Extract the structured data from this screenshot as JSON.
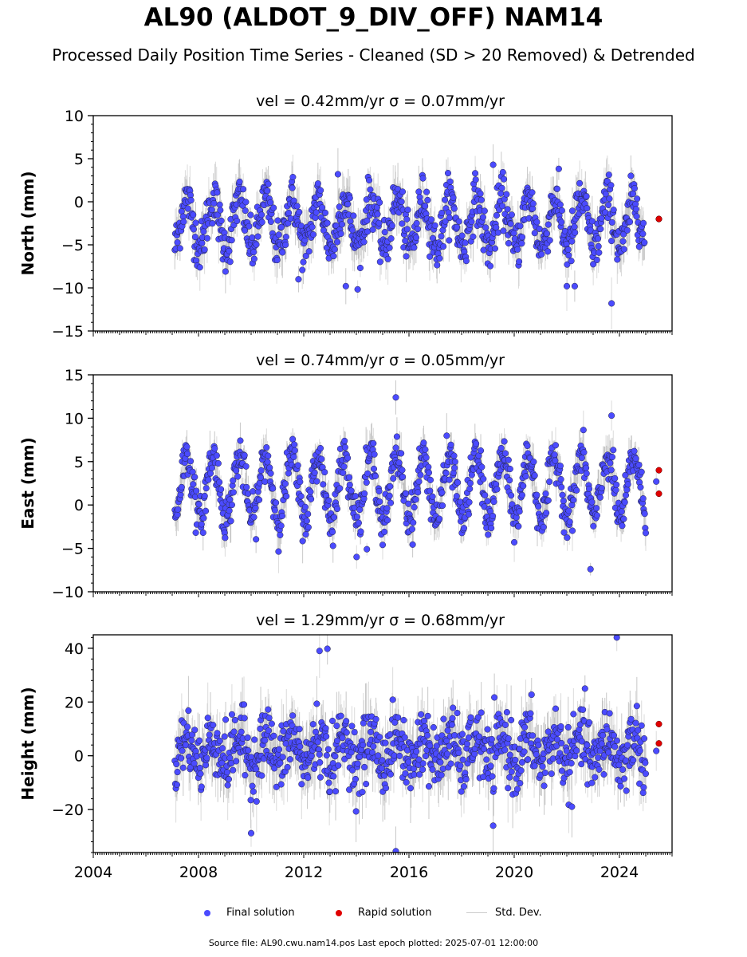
{
  "title": "AL90 (ALDOT_9_DIV_OFF) NAM14",
  "subtitle": "Processed Daily Position Time Series - Cleaned (SD > 20 Removed) & Detrended",
  "legend": {
    "final": "Final solution",
    "rapid": "Rapid solution",
    "std": "Std. Dev."
  },
  "footer": "Source file: AL90.cwu.nam14.pos  Last epoch plotted: 2025-07-01 12:00:00",
  "colors": {
    "final": "#4b4bff",
    "rapid": "#e00000",
    "std": "#cccccc"
  },
  "chart_data": [
    {
      "type": "scatter",
      "title": "vel = 0.42mm/yr   σ = 0.07mm/yr",
      "ylabel": "North (mm)",
      "xlim": [
        2004,
        2026
      ],
      "ylim": [
        -15,
        10
      ],
      "yticks": [
        -15,
        -10,
        -5,
        0,
        5,
        10
      ],
      "xticks": [
        2004,
        2008,
        2012,
        2016,
        2020,
        2024
      ],
      "data_start": 2007.1,
      "data_end": 2024.95,
      "final_series": {
        "offset": -2.5,
        "seasonal_amplitude": 2.8,
        "noise_sd": 1.4
      },
      "rapid_points": [
        {
          "x": 2025.5,
          "y": -2.0
        },
        {
          "x": 2025.5,
          "y": -2.0
        }
      ],
      "outliers": [
        {
          "x": 2023.7,
          "y": -11.8
        },
        {
          "x": 2022.3,
          "y": -9.8
        },
        {
          "x": 2022.0,
          "y": -9.8
        },
        {
          "x": 2013.6,
          "y": -9.8
        },
        {
          "x": 2011.8,
          "y": -9.0
        },
        {
          "x": 2013.3,
          "y": 3.2
        },
        {
          "x": 2019.2,
          "y": 4.3
        }
      ]
    },
    {
      "type": "scatter",
      "title": "vel = 0.74mm/yr   σ = 0.05mm/yr",
      "ylabel": "East (mm)",
      "xlim": [
        2004,
        2026
      ],
      "ylim": [
        -10,
        15
      ],
      "yticks": [
        -10,
        -5,
        0,
        5,
        10,
        15
      ],
      "xticks": [
        2004,
        2008,
        2012,
        2016,
        2020,
        2024
      ],
      "data_start": 2007.1,
      "data_end": 2025.0,
      "final_series": {
        "offset": 2.0,
        "seasonal_amplitude": 3.6,
        "noise_sd": 1.2
      },
      "rapid_points": [
        {
          "x": 2025.5,
          "y": 4.0
        },
        {
          "x": 2025.5,
          "y": 1.3
        }
      ],
      "outliers": [
        {
          "x": 2015.5,
          "y": 12.4
        },
        {
          "x": 2022.9,
          "y": -7.4
        },
        {
          "x": 2014.4,
          "y": -5.1
        },
        {
          "x": 2015.0,
          "y": -4.6
        },
        {
          "x": 2023.7,
          "y": 10.3
        },
        {
          "x": 2025.4,
          "y": 2.7
        }
      ]
    },
    {
      "type": "scatter",
      "title": "vel = 1.29mm/yr   σ = 0.68mm/yr",
      "ylabel": "Height (mm)",
      "xlim": [
        2004,
        2026
      ],
      "ylim": [
        -36,
        45
      ],
      "yticks": [
        -20,
        0,
        20,
        40
      ],
      "xticks": [
        2004,
        2008,
        2012,
        2016,
        2020,
        2024
      ],
      "data_start": 2007.1,
      "data_end": 2025.0,
      "final_series": {
        "offset": 2.0,
        "seasonal_amplitude": 5.0,
        "noise_sd": 6.0
      },
      "rapid_points": [
        {
          "x": 2025.5,
          "y": 11.8
        },
        {
          "x": 2025.5,
          "y": 4.6
        }
      ],
      "outliers": [
        {
          "x": 2023.9,
          "y": 44.0
        },
        {
          "x": 2012.9,
          "y": 39.8
        },
        {
          "x": 2012.6,
          "y": 39.0
        },
        {
          "x": 2010.0,
          "y": -28.8
        },
        {
          "x": 2015.5,
          "y": -35.5
        },
        {
          "x": 2019.2,
          "y": -26.0
        },
        {
          "x": 2025.4,
          "y": 1.8
        }
      ]
    }
  ]
}
